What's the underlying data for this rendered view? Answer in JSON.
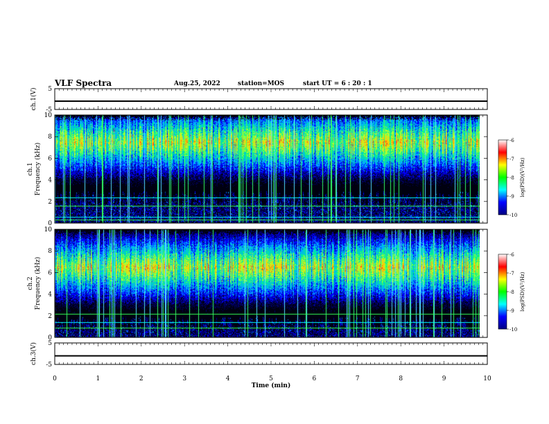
{
  "header": {
    "title": "VLF Spectra",
    "date": "Aug.25, 2022",
    "station": "station=MOS",
    "start_ut": "start UT =  6 : 20 : 1"
  },
  "colors": {
    "spectrum": [
      "#000066",
      "#0000ff",
      "#00aaff",
      "#00ee99",
      "#aaff33",
      "#ffcc00",
      "#ff4422"
    ],
    "colorbar": [
      "#000080",
      "#0000ff",
      "#00ffff",
      "#00ff00",
      "#ffff00",
      "#ff0000",
      "#ffffff"
    ]
  },
  "chart_data": [
    {
      "type": "line",
      "ylabel": "ch.1(V)",
      "ylim": [
        -5,
        5
      ],
      "yticks": [
        "5",
        "-5"
      ],
      "x": [
        0,
        10
      ],
      "series": [
        {
          "values": [
            -1.0,
            -1.0
          ]
        }
      ]
    },
    {
      "type": "heatmap",
      "ylabel": "ch.1  Frequency (kHz)",
      "ylim": [
        0,
        10
      ],
      "yticks": [
        "0",
        "2",
        "4",
        "6",
        "8",
        "10"
      ],
      "xlim": [
        0,
        10
      ],
      "data_end_min": 9.83,
      "colorbar": {
        "label": "log(PSD)(V²/Hz)",
        "range": [
          -10,
          -6
        ],
        "ticks": [
          "-6",
          "-7",
          "-8",
          "-9",
          "-10"
        ]
      },
      "description_levels": {
        "band_low_khz": 3,
        "band_high_khz": 9.5,
        "peak_khz": 7.5
      }
    },
    {
      "type": "heatmap",
      "ylabel": "ch.2  Frequency (kHz)",
      "ylim": [
        0,
        10
      ],
      "yticks": [
        "0",
        "2",
        "4",
        "6",
        "8",
        "10"
      ],
      "xlim": [
        0,
        10
      ],
      "data_end_min": 9.83,
      "colorbar": {
        "label": "log(PSD)(V²/Hz)",
        "range": [
          -10,
          -6
        ],
        "ticks": [
          "-6",
          "-7",
          "-8",
          "-9",
          "-10"
        ]
      },
      "description_levels": {
        "band_low_khz": 3,
        "band_high_khz": 9.5,
        "peak_khz": 6.5
      }
    },
    {
      "type": "line",
      "ylabel": "ch.3(V)",
      "ylim": [
        -5,
        5
      ],
      "yticks": [
        "5",
        "-5"
      ],
      "x": [
        0,
        10
      ],
      "series": [
        {
          "values": [
            -1.0,
            -1.0
          ]
        }
      ]
    }
  ],
  "xaxis": {
    "label": "Time (min)",
    "ticks": [
      "0",
      "1",
      "2",
      "3",
      "4",
      "5",
      "6",
      "7",
      "8",
      "9",
      "10"
    ],
    "range": [
      0,
      10
    ]
  }
}
